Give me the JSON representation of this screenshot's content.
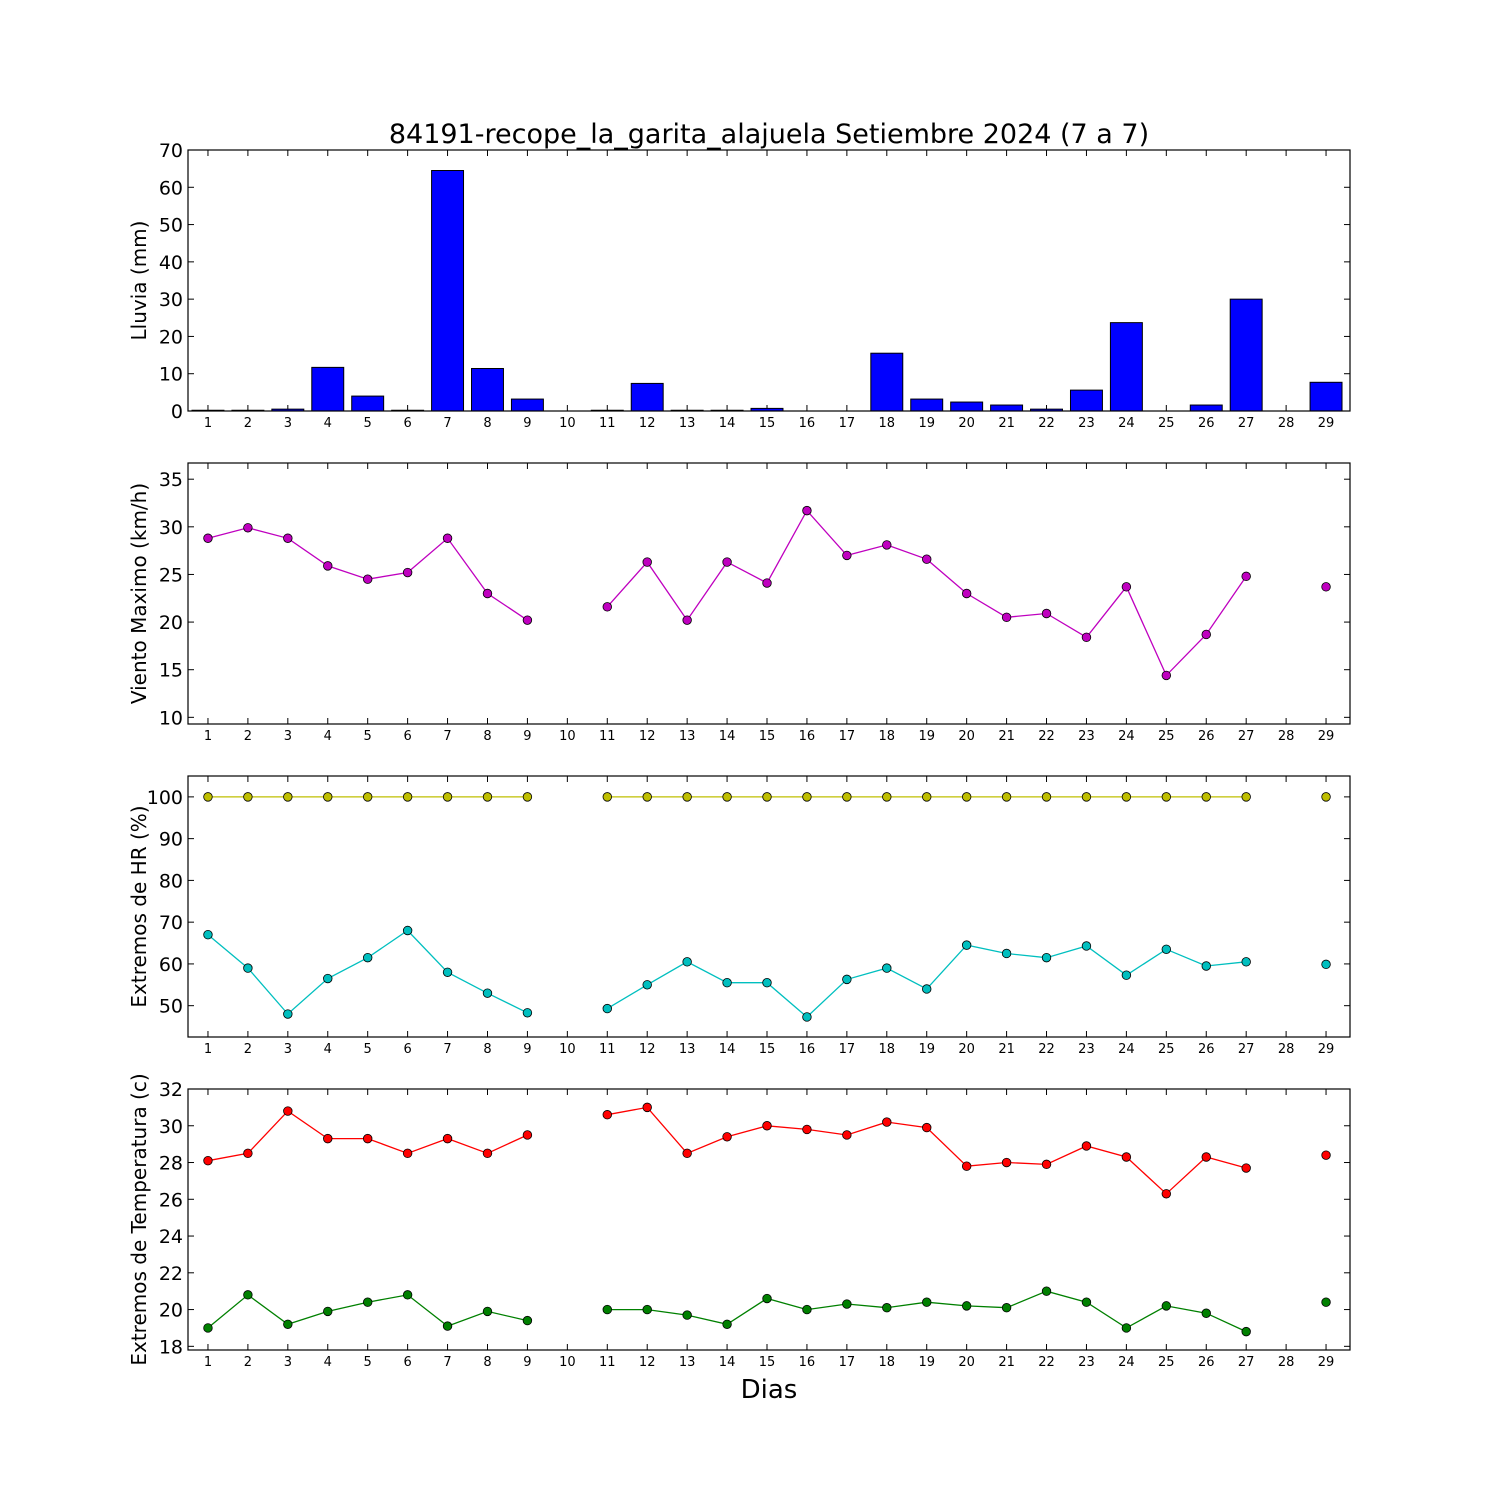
{
  "title": "84191-recope_la_garita_alajuela Setiembre 2024  (7 a 7)",
  "xlabel": "Dias",
  "chart_data": [
    {
      "type": "bar",
      "ylabel": "Lluvia (mm)",
      "ylim": [
        0,
        70
      ],
      "yticks": [
        0,
        10,
        20,
        30,
        40,
        50,
        60,
        70
      ],
      "x": [
        1,
        2,
        3,
        4,
        5,
        6,
        7,
        8,
        9,
        10,
        11,
        12,
        13,
        14,
        15,
        16,
        17,
        18,
        19,
        20,
        21,
        22,
        23,
        24,
        25,
        26,
        27,
        28,
        29
      ],
      "xtick_labels": [
        "1",
        "2",
        "3",
        "4",
        "5",
        "6",
        "7",
        "8",
        "9",
        "10",
        "11",
        "12",
        "13",
        "14",
        "15",
        "16",
        "17",
        "18",
        "19",
        "20",
        "21",
        "22",
        "23",
        "24",
        "25",
        "26",
        "27",
        "28",
        "29"
      ],
      "bar_color": "#0000ff",
      "values": [
        0.2,
        0.2,
        0.5,
        11.7,
        4.0,
        0.2,
        64.5,
        11.4,
        3.2,
        0,
        0.2,
        7.4,
        0.2,
        0.2,
        0.7,
        0,
        0,
        15.5,
        3.2,
        2.4,
        1.6,
        0.5,
        5.6,
        23.7,
        0,
        1.6,
        30.0,
        0,
        7.7
      ]
    },
    {
      "type": "line",
      "ylabel": "Viento Maximo (km/h)",
      "ylim": [
        9.3,
        36.7
      ],
      "yticks": [
        10,
        15,
        20,
        25,
        30,
        35
      ],
      "x": [
        1,
        2,
        3,
        4,
        5,
        6,
        7,
        8,
        9,
        10,
        11,
        12,
        13,
        14,
        15,
        16,
        17,
        18,
        19,
        20,
        21,
        22,
        23,
        24,
        25,
        26,
        27,
        28,
        29
      ],
      "xtick_labels": [
        "1",
        "2",
        "3",
        "4",
        "5",
        "6",
        "7",
        "8",
        "9",
        "10",
        "11",
        "12",
        "13",
        "14",
        "15",
        "16",
        "17",
        "18",
        "19",
        "20",
        "21",
        "22",
        "23",
        "24",
        "25",
        "26",
        "27",
        "28",
        "29"
      ],
      "series": [
        {
          "color": "#bf00bf",
          "values": [
            28.8,
            29.9,
            28.8,
            25.9,
            24.5,
            25.2,
            28.8,
            23.0,
            20.2,
            null,
            21.6,
            26.3,
            20.2,
            26.3,
            24.1,
            31.7,
            27.0,
            28.1,
            26.6,
            23.0,
            20.5,
            20.9,
            18.4,
            23.7,
            14.4,
            18.7,
            24.8,
            null,
            23.7
          ]
        }
      ]
    },
    {
      "type": "line",
      "ylabel": "Extremos de HR (%)",
      "ylim": [
        42.5,
        105
      ],
      "yticks": [
        50,
        60,
        70,
        80,
        90,
        100
      ],
      "x": [
        1,
        2,
        3,
        4,
        5,
        6,
        7,
        8,
        9,
        10,
        11,
        12,
        13,
        14,
        15,
        16,
        17,
        18,
        19,
        20,
        21,
        22,
        23,
        24,
        25,
        26,
        27,
        28,
        29
      ],
      "xtick_labels": [
        "1",
        "2",
        "3",
        "4",
        "5",
        "6",
        "7",
        "8",
        "9",
        "10",
        "11",
        "12",
        "13",
        "14",
        "15",
        "16",
        "17",
        "18",
        "19",
        "20",
        "21",
        "22",
        "23",
        "24",
        "25",
        "26",
        "27",
        "28",
        "29"
      ],
      "series": [
        {
          "color": "#bfbf00",
          "values": [
            100,
            100,
            100,
            100,
            100,
            100,
            100,
            100,
            100,
            null,
            100,
            100,
            100,
            100,
            100,
            100,
            100,
            100,
            100,
            100,
            100,
            100,
            100,
            100,
            100,
            100,
            100,
            null,
            100
          ]
        },
        {
          "color": "#00bfbf",
          "values": [
            67,
            59,
            48,
            56.5,
            61.5,
            68,
            58,
            53,
            48.3,
            null,
            49.3,
            55,
            60.5,
            55.5,
            55.5,
            47.3,
            56.3,
            59,
            54,
            64.5,
            62.5,
            61.5,
            64.3,
            57.3,
            63.5,
            59.5,
            60.5,
            null,
            59.9
          ]
        }
      ]
    },
    {
      "type": "line",
      "ylabel": "Extremos de Temperatura (c)",
      "ylim": [
        17.8,
        32
      ],
      "yticks": [
        18,
        20,
        22,
        24,
        26,
        28,
        30,
        32
      ],
      "x": [
        1,
        2,
        3,
        4,
        5,
        6,
        7,
        8,
        9,
        10,
        11,
        12,
        13,
        14,
        15,
        16,
        17,
        18,
        19,
        20,
        21,
        22,
        23,
        24,
        25,
        26,
        27,
        28,
        29
      ],
      "xtick_labels": [
        "1",
        "2",
        "3",
        "4",
        "5",
        "6",
        "7",
        "8",
        "9",
        "10",
        "11",
        "12",
        "13",
        "14",
        "15",
        "16",
        "17",
        "18",
        "19",
        "20",
        "21",
        "22",
        "23",
        "24",
        "25",
        "26",
        "27",
        "28",
        "29"
      ],
      "series": [
        {
          "color": "#ff0000",
          "values": [
            28.1,
            28.5,
            30.8,
            29.3,
            29.3,
            28.5,
            29.3,
            28.5,
            29.5,
            null,
            30.6,
            31.0,
            28.5,
            29.4,
            30.0,
            29.8,
            29.5,
            30.2,
            29.9,
            27.8,
            28.0,
            27.9,
            28.9,
            28.3,
            26.3,
            28.3,
            27.7,
            null,
            28.4
          ]
        },
        {
          "color": "#008000",
          "values": [
            19.0,
            20.8,
            19.2,
            19.9,
            20.4,
            20.8,
            19.1,
            19.9,
            19.4,
            null,
            20.0,
            20.0,
            19.7,
            19.2,
            20.6,
            20.0,
            20.3,
            20.1,
            20.4,
            20.2,
            20.1,
            21.0,
            20.4,
            19.0,
            20.2,
            19.8,
            18.8,
            null,
            20.4
          ]
        }
      ]
    }
  ]
}
